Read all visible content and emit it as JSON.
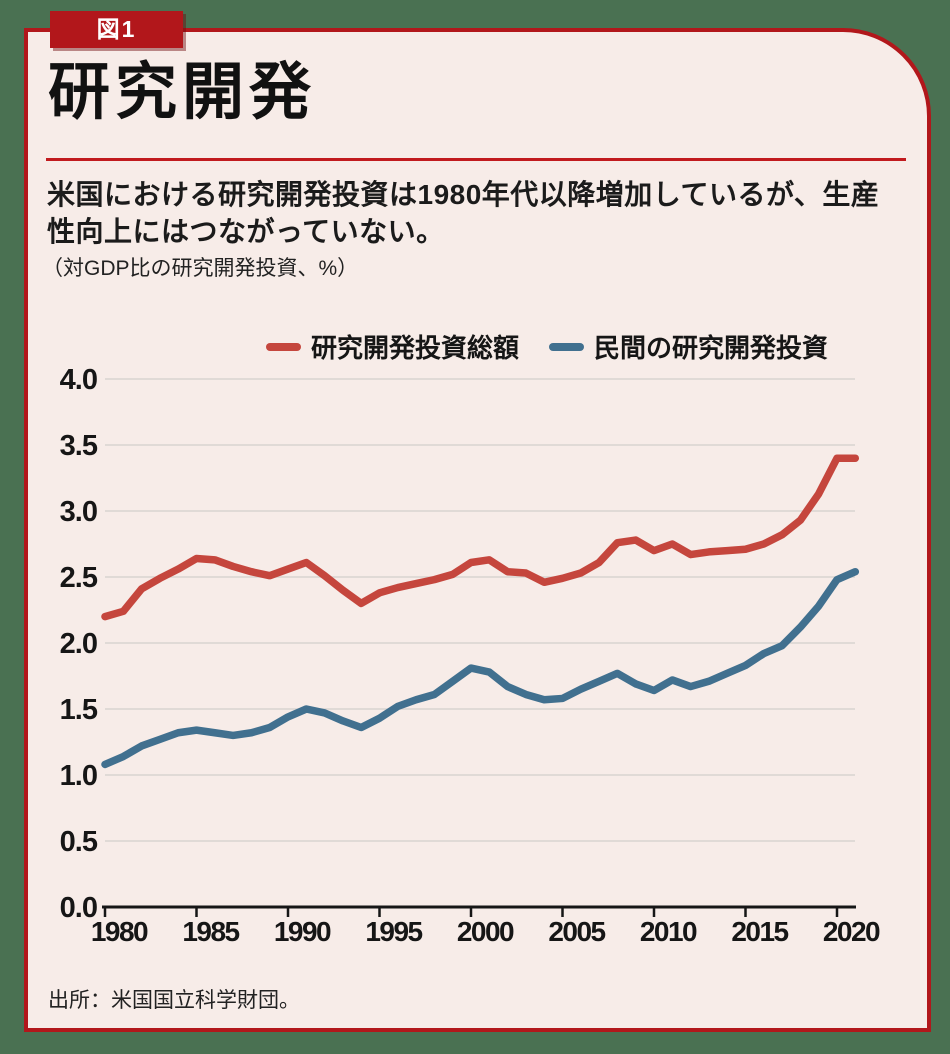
{
  "badge": {
    "label": "図1"
  },
  "header": {
    "title": "研究開発",
    "lead": "米国における研究開発投資は1980年代以降増加しているが、生産性向上にはつながっていない。",
    "unit_note": "（対GDP比の研究開発投資、%）"
  },
  "source": "出所：米国国立科学財団。",
  "colors": {
    "page_background": "#4a7152",
    "card_background": "#f7ece8",
    "frame_red": "#b2171b",
    "rule_red": "#c11a1e",
    "grid": "#d9d3d0",
    "axis_text": "#161616",
    "series_total": "#c5463d",
    "series_private": "#41708f"
  },
  "chart_data": {
    "type": "line",
    "title": "",
    "xlabel": "",
    "ylabel": "対GDP比の研究開発投資（%）",
    "ylim": [
      0.0,
      4.0
    ],
    "ytick_step": 0.5,
    "xticks": [
      1980,
      1985,
      1990,
      1995,
      2000,
      2005,
      2010,
      2015,
      2020
    ],
    "grid": true,
    "legend_position": "top",
    "x": [
      1980,
      1981,
      1982,
      1983,
      1984,
      1985,
      1986,
      1987,
      1988,
      1989,
      1990,
      1991,
      1992,
      1993,
      1994,
      1995,
      1996,
      1997,
      1998,
      1999,
      2000,
      2001,
      2002,
      2003,
      2004,
      2005,
      2006,
      2007,
      2008,
      2009,
      2010,
      2011,
      2012,
      2013,
      2014,
      2015,
      2016,
      2017,
      2018,
      2019,
      2020,
      2021
    ],
    "series": [
      {
        "name": "研究開発投資総額",
        "color": "#c5463d",
        "values": [
          2.2,
          2.24,
          2.41,
          2.49,
          2.56,
          2.64,
          2.63,
          2.58,
          2.54,
          2.51,
          2.56,
          2.61,
          2.51,
          2.4,
          2.3,
          2.38,
          2.42,
          2.45,
          2.48,
          2.52,
          2.61,
          2.63,
          2.54,
          2.53,
          2.46,
          2.49,
          2.53,
          2.61,
          2.76,
          2.78,
          2.7,
          2.75,
          2.67,
          2.69,
          2.7,
          2.71,
          2.75,
          2.82,
          2.93,
          3.13,
          3.4,
          3.4
        ]
      },
      {
        "name": "民間の研究開発投資",
        "color": "#41708f",
        "values": [
          1.08,
          1.14,
          1.22,
          1.27,
          1.32,
          1.34,
          1.32,
          1.3,
          1.32,
          1.36,
          1.44,
          1.5,
          1.47,
          1.41,
          1.36,
          1.43,
          1.52,
          1.57,
          1.61,
          1.71,
          1.81,
          1.78,
          1.67,
          1.61,
          1.57,
          1.58,
          1.65,
          1.71,
          1.77,
          1.69,
          1.64,
          1.72,
          1.67,
          1.71,
          1.77,
          1.83,
          1.92,
          1.98,
          2.12,
          2.28,
          2.48,
          2.54
        ]
      }
    ]
  },
  "legend": {
    "items": [
      {
        "label": "研究開発投資総額",
        "color": "#c5463d"
      },
      {
        "label": "民間の研究開発投資",
        "color": "#41708f"
      }
    ]
  }
}
